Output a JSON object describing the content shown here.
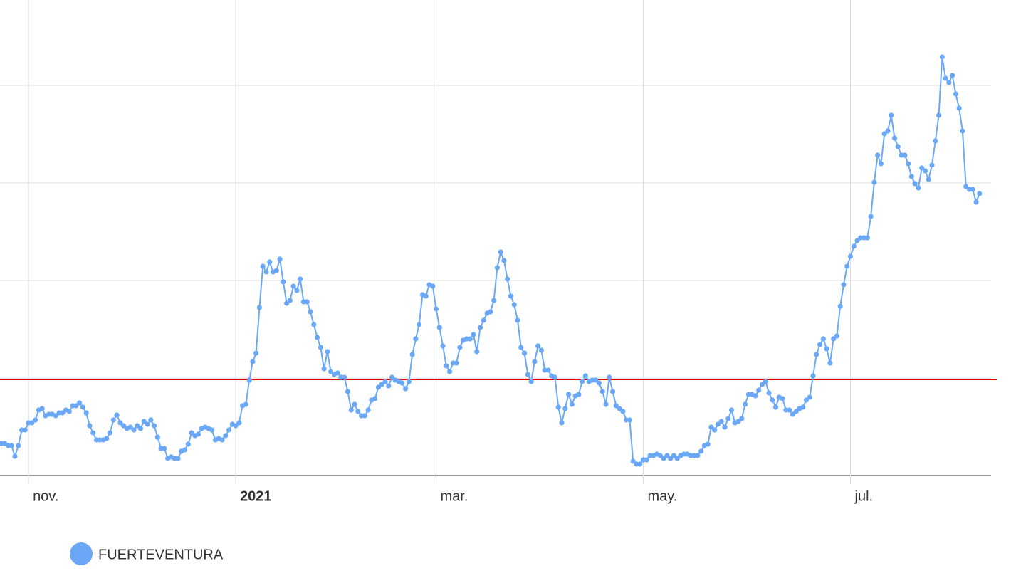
{
  "chart_data": {
    "type": "line",
    "x": [
      -8,
      -7,
      -6,
      -5,
      -4,
      -3,
      -2,
      -1,
      0,
      1,
      2,
      3,
      4,
      5,
      6,
      7,
      8,
      9,
      10,
      11,
      12,
      13,
      14,
      15,
      16,
      17,
      18,
      19,
      20,
      21,
      22,
      23,
      24,
      25,
      26,
      27,
      28,
      29,
      30,
      31,
      32,
      33,
      34,
      35,
      36,
      37,
      38,
      39,
      40,
      41,
      42,
      43,
      44,
      45,
      46,
      47,
      48,
      49,
      50,
      51,
      52,
      53,
      54,
      55,
      56,
      57,
      58,
      59,
      60,
      61,
      62,
      63,
      64,
      65,
      66,
      67,
      68,
      69,
      70,
      71,
      72,
      73,
      74,
      75,
      76,
      77,
      78,
      79,
      80,
      81,
      82,
      83,
      84,
      85,
      86,
      87,
      88,
      89,
      90,
      91,
      92,
      93,
      94,
      95,
      96,
      97,
      98,
      99,
      100,
      101,
      102,
      103,
      104,
      105,
      106,
      107,
      108,
      109,
      110,
      111,
      112,
      113,
      114,
      115,
      116,
      117,
      118,
      119,
      120,
      121,
      122,
      123,
      124,
      125,
      126,
      127,
      128,
      129,
      130,
      131,
      132,
      133,
      134,
      135,
      136,
      137,
      138,
      139,
      140,
      141,
      142,
      143,
      144,
      145,
      146,
      147,
      148,
      149,
      150,
      151,
      152,
      153,
      154,
      155,
      156,
      157,
      158,
      159,
      160,
      161,
      162,
      163,
      164,
      165,
      166,
      167,
      168,
      169,
      170,
      171,
      172,
      173,
      174,
      175,
      176,
      177,
      178,
      179,
      180,
      181,
      182,
      183,
      184,
      185,
      186,
      187,
      188,
      189,
      190,
      191,
      192,
      193,
      194,
      195,
      196,
      197,
      198,
      199,
      200,
      201,
      202,
      203,
      204,
      205,
      206,
      207,
      208,
      209,
      210,
      211,
      212,
      213,
      214,
      215,
      216,
      217,
      218,
      219,
      220,
      221,
      222,
      223,
      224,
      225,
      226,
      227,
      228,
      229,
      230,
      231,
      232,
      233,
      234,
      235,
      236,
      237,
      238,
      239,
      240,
      241,
      242,
      243,
      244,
      245,
      246,
      247,
      248,
      249,
      250,
      251,
      252,
      253,
      254,
      255,
      256,
      257,
      258,
      259,
      260,
      261,
      262,
      263,
      264,
      265,
      266,
      267,
      268,
      269,
      270,
      271,
      272,
      273,
      274,
      275,
      276,
      277,
      278,
      279,
      280
    ],
    "series": [
      {
        "name": "FUERTEVENTURA",
        "color": "#6aa8f7",
        "values": [
          45,
          45,
          42,
          42,
          27,
          42,
          64,
          64,
          74,
          74,
          78,
          92,
          94,
          84,
          86,
          86,
          84,
          88,
          88,
          92,
          90,
          98,
          98,
          102,
          96,
          88,
          70,
          60,
          50,
          50,
          50,
          52,
          60,
          78,
          85,
          74,
          70,
          66,
          68,
          64,
          70,
          66,
          76,
          72,
          78,
          70,
          54,
          38,
          38,
          24,
          26,
          24,
          24,
          34,
          36,
          44,
          60,
          56,
          58,
          66,
          68,
          66,
          64,
          50,
          52,
          50,
          56,
          64,
          72,
          70,
          74,
          98,
          100,
          134,
          160,
          172,
          236,
          294,
          286,
          300,
          286,
          288,
          304,
          272,
          242,
          246,
          266,
          260,
          276,
          244,
          244,
          230,
          212,
          194,
          180,
          150,
          174,
          146,
          142,
          144,
          138,
          138,
          118,
          92,
          100,
          90,
          84,
          84,
          92,
          106,
          108,
          124,
          128,
          132,
          126,
          138,
          134,
          132,
          130,
          122,
          132,
          170,
          192,
          212,
          254,
          252,
          268,
          266,
          234,
          208,
          182,
          154,
          146,
          158,
          158,
          180,
          190,
          192,
          192,
          198,
          174,
          208,
          218,
          228,
          230,
          246,
          292,
          314,
          302,
          276,
          252,
          240,
          218,
          180,
          172,
          142,
          132,
          160,
          182,
          176,
          148,
          148,
          140,
          138,
          96,
          74,
          94,
          114,
          100,
          112,
          114,
          132,
          140,
          132,
          134,
          134,
          130,
          118,
          100,
          138,
          118,
          98,
          94,
          90,
          78,
          78,
          20,
          16,
          16,
          22,
          22,
          28,
          28,
          30,
          28,
          24,
          28,
          24,
          28,
          24,
          28,
          30,
          30,
          28,
          28,
          28,
          34,
          42,
          44,
          68,
          64,
          72,
          76,
          68,
          80,
          92,
          74,
          76,
          80,
          100,
          114,
          114,
          112,
          120,
          128,
          132,
          116,
          106,
          96,
          110,
          108,
          92,
          92,
          86,
          90,
          94,
          96,
          106,
          110,
          140,
          170,
          184,
          192,
          178,
          158,
          192,
          196,
          238,
          268,
          294,
          308,
          322,
          330,
          334,
          334,
          334,
          364,
          412,
          450,
          438,
          480,
          484,
          506,
          474,
          462,
          450,
          450,
          438,
          420,
          410,
          404,
          432,
          428,
          416,
          436,
          470,
          506,
          588,
          558,
          552,
          562,
          536,
          516,
          484,
          406,
          402,
          402,
          384,
          396
        ]
      }
    ],
    "xlim": [
      -8.4,
      283.4
    ],
    "xticks": [
      {
        "value": 0,
        "label": "nov."
      },
      {
        "value": 61,
        "label": "2021"
      },
      {
        "value": 120,
        "label": "mar."
      },
      {
        "value": 181,
        "label": "may."
      },
      {
        "value": 242,
        "label": "jul."
      }
    ],
    "ylim": [
      0,
      668
    ],
    "yticks": [
      0,
      137,
      274,
      411,
      548
    ],
    "threshold": 135,
    "threshold_color": "#e00000",
    "grid": true
  }
}
